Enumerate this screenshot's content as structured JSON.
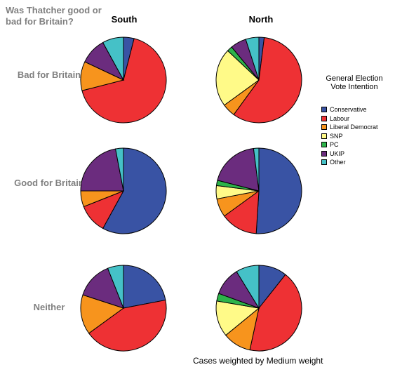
{
  "chart_data": {
    "type": "pie",
    "title": "Was Thatcher good or bad for Britain?",
    "columns": [
      "South",
      "North"
    ],
    "rows": [
      "Bad for Britain",
      "Good for Britain",
      "Neither"
    ],
    "legend_title": "General Election Vote Intention",
    "legend_position": "right",
    "series_names": [
      "Conservative",
      "Labour",
      "Liberal Democrat",
      "SNP",
      "PC",
      "UKIP",
      "Other"
    ],
    "colors": [
      "#3953a4",
      "#ee3134",
      "#f7941d",
      "#fffa88",
      "#2db34a",
      "#6b2c7e",
      "#45c1c7"
    ],
    "pies": [
      {
        "row": "Bad for Britain",
        "column": "South",
        "values": [
          4,
          67,
          11,
          0,
          0,
          10,
          8
        ]
      },
      {
        "row": "Bad for Britain",
        "column": "North",
        "values": [
          2,
          58,
          5,
          22,
          2,
          6,
          5
        ]
      },
      {
        "row": "Good for Britain",
        "column": "South",
        "values": [
          58,
          11,
          6,
          0,
          0,
          22,
          3
        ]
      },
      {
        "row": "Good for Britain",
        "column": "North",
        "values": [
          51,
          14,
          7,
          5,
          2,
          19,
          2
        ]
      },
      {
        "row": "Neither",
        "column": "South",
        "values": [
          22,
          43,
          15,
          0,
          0,
          14,
          6
        ]
      },
      {
        "row": "Neither",
        "column": "North",
        "values": [
          11,
          44,
          11,
          14,
          3,
          11,
          9
        ]
      }
    ]
  },
  "footnote": "Cases weighted by Medium weight"
}
